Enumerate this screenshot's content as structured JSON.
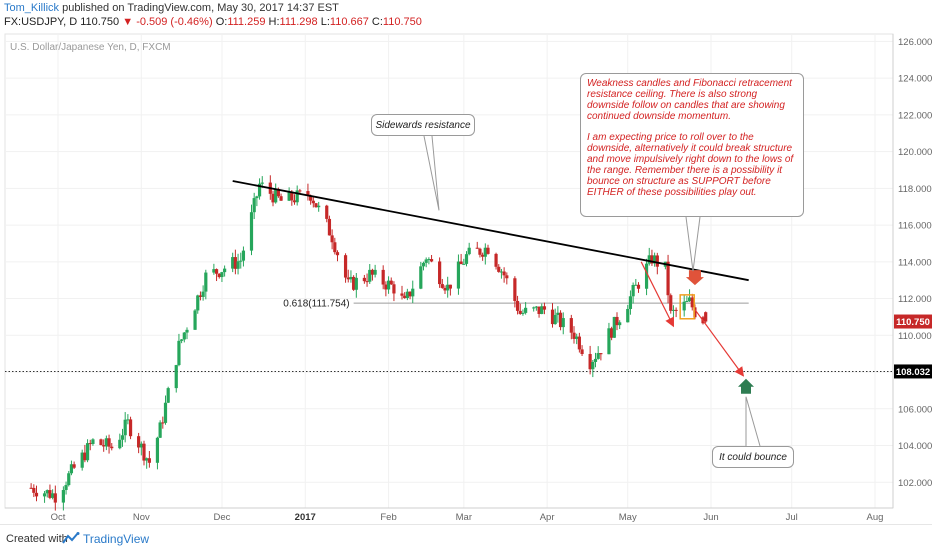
{
  "header": {
    "user": "Tom_Killick",
    "published": "published on TradingView.com, May 30, 2017 14:37 EST",
    "symbol": "FX:USDJPY, D",
    "last": "110.750",
    "change": "-0.509 (-0.46%)",
    "open_label": "O:",
    "open": "111.259",
    "high_label": "H:",
    "high": "111.298",
    "low_label": "L:",
    "low": "110.667",
    "close_label": "C:",
    "close": "110.750"
  },
  "footer": {
    "created": "Created with",
    "brand": "TradingView"
  },
  "annotations": {
    "main_note_p1": "Weakness candles and Fibonacci retracement resistance ceiling. There is also strong downside follow on candles that are showing continued downside momentum.",
    "main_note_p2": "I am expecting price to roll over to the downside, alternatively it could break structure and move impulsively right down to the lows of the range. Remember there is a possibility it bounce on structure as SUPPORT before EITHER of these possibilities play out.",
    "sideways_note": "Sidewards resistance",
    "bounce_note": "It could bounce"
  },
  "chart_data": {
    "type": "candlestick",
    "title": "U.S. Dollar/Japanese Yen, D, FXCM",
    "ylim": [
      100.6,
      126.4
    ],
    "y_ticks": [
      "102.000",
      "104.000",
      "106.000",
      "108.000",
      "110.000",
      "112.000",
      "114.000",
      "116.000",
      "118.000",
      "120.000",
      "122.000",
      "124.000",
      "126.000"
    ],
    "x_ticks": [
      {
        "label": "Oct",
        "date": "2016-10-01"
      },
      {
        "label": "Nov",
        "date": "2016-11-01"
      },
      {
        "label": "Dec",
        "date": "2016-12-01"
      },
      {
        "label": "2017",
        "date": "2017-01-01"
      },
      {
        "label": "Feb",
        "date": "2017-02-01"
      },
      {
        "label": "Mar",
        "date": "2017-03-01"
      },
      {
        "label": "Apr",
        "date": "2017-04-01"
      },
      {
        "label": "May",
        "date": "2017-05-01"
      },
      {
        "label": "Jun",
        "date": "2017-06-01"
      },
      {
        "label": "Jul",
        "date": "2017-07-01"
      },
      {
        "label": "Aug",
        "date": "2017-08-01"
      }
    ],
    "price_path": [
      [
        "2016-09-21",
        101.7
      ],
      [
        "2016-09-30",
        101.3
      ],
      [
        "2016-10-14",
        104.2
      ],
      [
        "2016-10-21",
        103.9
      ],
      [
        "2016-10-27",
        105.2
      ],
      [
        "2016-11-04",
        103.1
      ],
      [
        "2016-11-08",
        104.9
      ],
      [
        "2016-11-15",
        109.4
      ],
      [
        "2016-11-25",
        113.2
      ],
      [
        "2016-12-08",
        114.1
      ],
      [
        "2016-12-15",
        118.2
      ],
      [
        "2016-12-23",
        117.3
      ],
      [
        "2017-01-03",
        117.7
      ],
      [
        "2017-01-11",
        115.4
      ],
      [
        "2017-01-17",
        112.7
      ],
      [
        "2017-01-25",
        113.3
      ],
      [
        "2017-02-03",
        112.6
      ],
      [
        "2017-02-07",
        111.7
      ],
      [
        "2017-02-15",
        114.3
      ],
      [
        "2017-02-23",
        112.6
      ],
      [
        "2017-03-02",
        114.3
      ],
      [
        "2017-03-10",
        114.8
      ],
      [
        "2017-03-16",
        113.3
      ],
      [
        "2017-03-22",
        111.2
      ],
      [
        "2017-03-31",
        111.4
      ],
      [
        "2017-04-11",
        110.1
      ],
      [
        "2017-04-17",
        108.6
      ],
      [
        "2017-04-21",
        109.3
      ],
      [
        "2017-05-01",
        111.8
      ],
      [
        "2017-05-10",
        114.2
      ],
      [
        "2017-05-15",
        113.6
      ],
      [
        "2017-05-17",
        111.1
      ],
      [
        "2017-05-24",
        111.8
      ],
      [
        "2017-05-26",
        111.3
      ],
      [
        "2017-05-30",
        110.75
      ]
    ],
    "current_price": "110.750",
    "support_level": "108.032",
    "fib_level": 111.754,
    "fib_label": "0.618(111.754)",
    "trendline": [
      [
        "2016-12-05",
        118.4
      ],
      [
        "2017-06-15",
        113.0
      ]
    ],
    "projection": [
      [
        "2017-05-17",
        113.9
      ],
      [
        "2017-05-26",
        111.4
      ],
      [
        "2017-06-13",
        107.8
      ]
    ],
    "colors": {
      "up": "#26a65b",
      "down": "#c62828",
      "price_tag": "#c62828",
      "support_tag": "#000000",
      "arrow_up": "#2e7d52",
      "arrow_down": "#e0533a",
      "projection": "#e53935"
    }
  }
}
